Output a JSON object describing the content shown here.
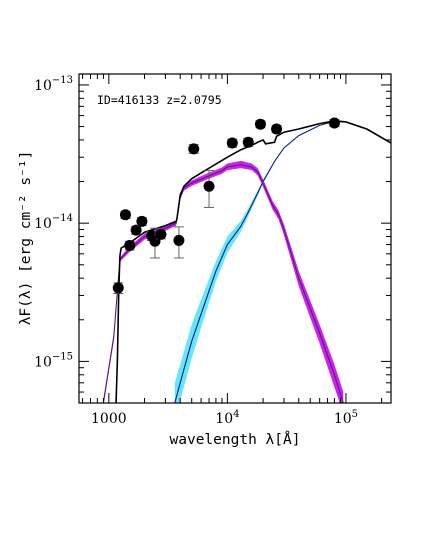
{
  "chart_data": {
    "type": "scatter",
    "annotation": "ID=416133 z=2.0795",
    "xlabel": "wavelength λ[Å]",
    "ylabel": "λF(λ) [erg cm⁻² s⁻¹]",
    "xscale": "log",
    "yscale": "log",
    "xlim": [
      560,
      240000
    ],
    "ylim": [
      5e-16,
      1.2e-13
    ],
    "x_ticks": [
      {
        "value": 1000,
        "label": "1000"
      },
      {
        "value": 10000,
        "base": "10",
        "exp": "4"
      },
      {
        "value": 100000,
        "base": "10",
        "exp": "5"
      }
    ],
    "y_ticks": [
      {
        "value": 1e-13,
        "base": "10",
        "exp": "−13"
      },
      {
        "value": 1e-14,
        "base": "10",
        "exp": "−14"
      },
      {
        "value": 1e-15,
        "base": "10",
        "exp": "−15"
      }
    ],
    "series": [
      {
        "kind": "observed-photometry",
        "color": "#000000",
        "points": [
          {
            "x": 1200,
            "y": 3.4e-15,
            "yerr_lo": 3.1e-15,
            "yerr_hi": 3.7e-15
          },
          {
            "x": 1380,
            "y": 1.15e-14,
            "yerr_lo": 1.08e-14,
            "yerr_hi": 1.22e-14
          },
          {
            "x": 1500,
            "y": 6.9e-15,
            "yerr_lo": 6.4e-15,
            "yerr_hi": 7.4e-15
          },
          {
            "x": 1700,
            "y": 8.9e-15,
            "yerr_lo": 8.3e-15,
            "yerr_hi": 9.5e-15
          },
          {
            "x": 1900,
            "y": 1.03e-14,
            "yerr_lo": 9.6e-15,
            "yerr_hi": 1.1e-14
          },
          {
            "x": 2300,
            "y": 8.1e-15,
            "yerr_lo": 7.5e-15,
            "yerr_hi": 8.7e-15
          },
          {
            "x": 2450,
            "y": 7.4e-15,
            "yerr_lo": 5.6e-15,
            "yerr_hi": 9.2e-15
          },
          {
            "x": 2750,
            "y": 8.3e-15,
            "yerr_lo": 7.7e-15,
            "yerr_hi": 8.9e-15
          },
          {
            "x": 3900,
            "y": 7.5e-15,
            "yerr_lo": 5.6e-15,
            "yerr_hi": 9.4e-15
          },
          {
            "x": 5200,
            "y": 3.45e-14,
            "yerr_lo": 3.2e-14,
            "yerr_hi": 3.7e-14
          },
          {
            "x": 7000,
            "y": 1.85e-14,
            "yerr_lo": 1.3e-14,
            "yerr_hi": 2.4e-14
          },
          {
            "x": 11000,
            "y": 3.8e-14,
            "yerr_lo": 3.55e-14,
            "yerr_hi": 4.05e-14
          },
          {
            "x": 15000,
            "y": 3.85e-14,
            "yerr_lo": 3.6e-14,
            "yerr_hi": 4.1e-14
          },
          {
            "x": 19000,
            "y": 5.2e-14,
            "yerr_lo": 4.9e-14,
            "yerr_hi": 5.5e-14
          },
          {
            "x": 26000,
            "y": 4.8e-14,
            "yerr_lo": 4.5e-14,
            "yerr_hi": 5.1e-14
          },
          {
            "x": 80000,
            "y": 5.3e-14,
            "yerr_lo": 5e-14,
            "yerr_hi": 5.6e-14
          }
        ]
      },
      {
        "kind": "stellar-component-band",
        "color": "#cc22ee",
        "line_color": "#5a1a7a",
        "x": [
          900,
          1100,
          1210,
          1250,
          1500,
          2000,
          3000,
          3700,
          4000,
          4300,
          5000,
          7000,
          9000,
          10000,
          13000,
          16000,
          18000,
          20000,
          24000,
          27000,
          30000,
          40000,
          60000,
          80000,
          95000
        ],
        "y": [
          5e-16,
          1.5e-15,
          4.2e-15,
          5.5e-15,
          6.5e-15,
          8e-15,
          9.2e-15,
          1e-14,
          1.55e-14,
          1.8e-14,
          1.95e-14,
          2.2e-14,
          2.4e-14,
          2.55e-14,
          2.65e-14,
          2.55e-14,
          2.35e-14,
          1.95e-14,
          1.35e-14,
          1.15e-14,
          9e-15,
          4e-15,
          1.6e-15,
          8e-16,
          5e-16
        ],
        "y_lo": [
          5e-16,
          1.4e-15,
          4e-15,
          5.3e-15,
          6.2e-15,
          7.6e-15,
          8.8e-15,
          9.6e-15,
          1.48e-14,
          1.72e-14,
          1.86e-14,
          2.1e-14,
          2.28e-14,
          2.42e-14,
          2.5e-14,
          2.42e-14,
          2.22e-14,
          1.83e-14,
          1.26e-14,
          1.07e-14,
          8.2e-15,
          3.5e-15,
          1.35e-15,
          6.5e-16,
          4.2e-16
        ],
        "y_hi": [
          5.4e-16,
          1.6e-15,
          4.4e-15,
          5.7e-15,
          6.8e-15,
          8.4e-15,
          9.7e-15,
          1.05e-14,
          1.62e-14,
          1.88e-14,
          2.04e-14,
          2.32e-14,
          2.53e-14,
          2.7e-14,
          2.82e-14,
          2.7e-14,
          2.5e-14,
          2.08e-14,
          1.45e-14,
          1.24e-14,
          9.8e-15,
          4.5e-15,
          1.85e-15,
          9.5e-16,
          6e-16
        ]
      },
      {
        "kind": "dust-component-band",
        "color": "#66e8f4",
        "line_color": "#0b1a9a",
        "x": [
          3600,
          4000,
          5000,
          6000,
          8000,
          10000,
          13000,
          15000,
          18000,
          20000,
          25000,
          30000,
          40000,
          60000,
          80000,
          100000,
          150000,
          240000
        ],
        "y": [
          5e-16,
          7e-16,
          1.4e-15,
          2.2e-15,
          4.5e-15,
          7e-15,
          9.5e-15,
          1.2e-14,
          1.65e-14,
          2e-14,
          2.8e-14,
          3.5e-14,
          4.3e-14,
          5.1e-14,
          5.45e-14,
          5.4e-14,
          4.8e-14,
          3.8e-14
        ],
        "y_lo": [
          3.5e-16,
          5.2e-16,
          1.05e-15,
          1.75e-15,
          3.8e-15,
          6.1e-15,
          8.7e-15,
          1.12e-14,
          1.58e-14,
          1.95e-14,
          2.76e-14,
          3.47e-14,
          4.28e-14,
          5.08e-14,
          5.43e-14,
          5.38e-14,
          4.78e-14,
          3.78e-14
        ],
        "y_hi": [
          7e-16,
          9.5e-16,
          1.85e-15,
          2.8e-15,
          5.3e-15,
          8e-15,
          1.04e-14,
          1.28e-14,
          1.72e-14,
          2.05e-14,
          2.84e-14,
          3.53e-14,
          4.32e-14,
          5.12e-14,
          5.47e-14,
          5.42e-14,
          4.82e-14,
          3.82e-14
        ]
      },
      {
        "kind": "total-model",
        "color": "#000000",
        "x": [
          1150,
          1180,
          1210,
          1230,
          1240,
          1270,
          1500,
          2000,
          3000,
          3700,
          3750,
          4000,
          4300,
          5000,
          7000,
          10000,
          13000,
          16000,
          18000,
          20000,
          21000,
          25000,
          26000,
          30000,
          40000,
          60000,
          80000,
          100000,
          150000,
          240000
        ],
        "y": [
          5e-16,
          1e-15,
          3e-15,
          4.8e-15,
          5.8e-15,
          6.6e-15,
          7.2e-15,
          8.6e-15,
          9.6e-15,
          1.03e-14,
          1.07e-14,
          1.6e-14,
          1.85e-14,
          2.1e-14,
          2.5e-14,
          3e-14,
          3.4e-14,
          3.65e-14,
          3.85e-14,
          4e-14,
          3.75e-14,
          3.85e-14,
          4.25e-14,
          4.55e-14,
          4.8e-14,
          5.25e-14,
          5.5e-14,
          5.4e-14,
          4.8e-14,
          3.8e-14
        ]
      }
    ]
  }
}
